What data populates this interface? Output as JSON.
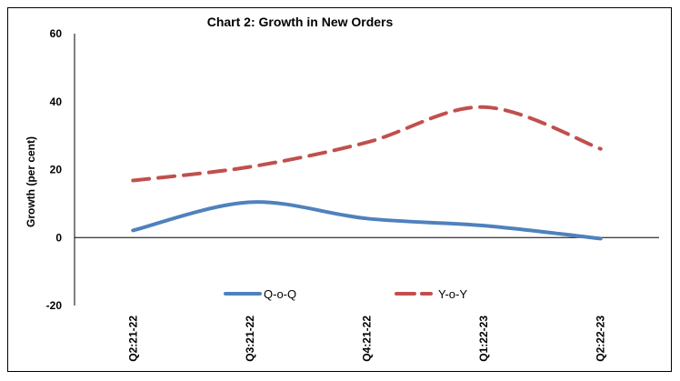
{
  "chart_data": {
    "type": "line",
    "title": "Chart 2: Growth in New Orders",
    "xlabel": "",
    "ylabel": "Growth (per cent)",
    "categories": [
      "Q2:21-22",
      "Q3:21-22",
      "Q4:21-22",
      "Q1:22-23",
      "Q2:22-23"
    ],
    "ylim": [
      -20,
      60
    ],
    "yticks": [
      -20,
      0,
      20,
      40,
      60
    ],
    "grid": false,
    "smooth": true,
    "legend": "bottom-center",
    "series": [
      {
        "name": "Q-o-Q",
        "values": [
          2.1,
          10.4,
          5.6,
          3.5,
          -0.3
        ],
        "color": "#4F81BD",
        "dash": "solid"
      },
      {
        "name": "Y-o-Y",
        "values": [
          16.8,
          20.8,
          28.0,
          38.4,
          26.1
        ],
        "color": "#C0504D",
        "dash": "dashed"
      }
    ]
  }
}
